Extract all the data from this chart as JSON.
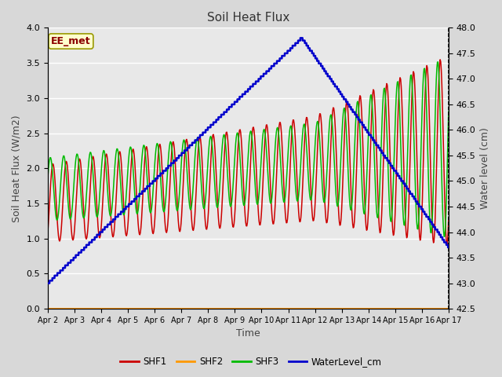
{
  "title": "Soil Heat Flux",
  "xlabel": "Time",
  "ylabel_left": "Soil Heat Flux (W/m2)",
  "ylabel_right": "Water level (cm)",
  "annotation": "EE_met",
  "fig_facecolor": "#d8d8d8",
  "axes_facecolor": "#e8e8e8",
  "ylim_left": [
    0.0,
    4.0
  ],
  "ylim_right": [
    42.5,
    48.0
  ],
  "x_labels": [
    "Apr 2",
    "Apr 3",
    "Apr 4",
    "Apr 5",
    "Apr 6",
    "Apr 7",
    "Apr 8",
    "Apr 9",
    "Apr 10",
    "Apr 11",
    "Apr 12",
    "Apr 13",
    "Apr 14",
    "Apr 15",
    "Apr 16",
    "Apr 17"
  ],
  "shf1_color": "#cc0000",
  "shf2_color": "#ff9900",
  "shf3_color": "#00bb00",
  "wl_color": "#0000cc",
  "grid_color": "#ffffff",
  "annotation_facecolor": "#ffffcc",
  "annotation_edgecolor": "#999900",
  "annotation_textcolor": "#8b0000"
}
